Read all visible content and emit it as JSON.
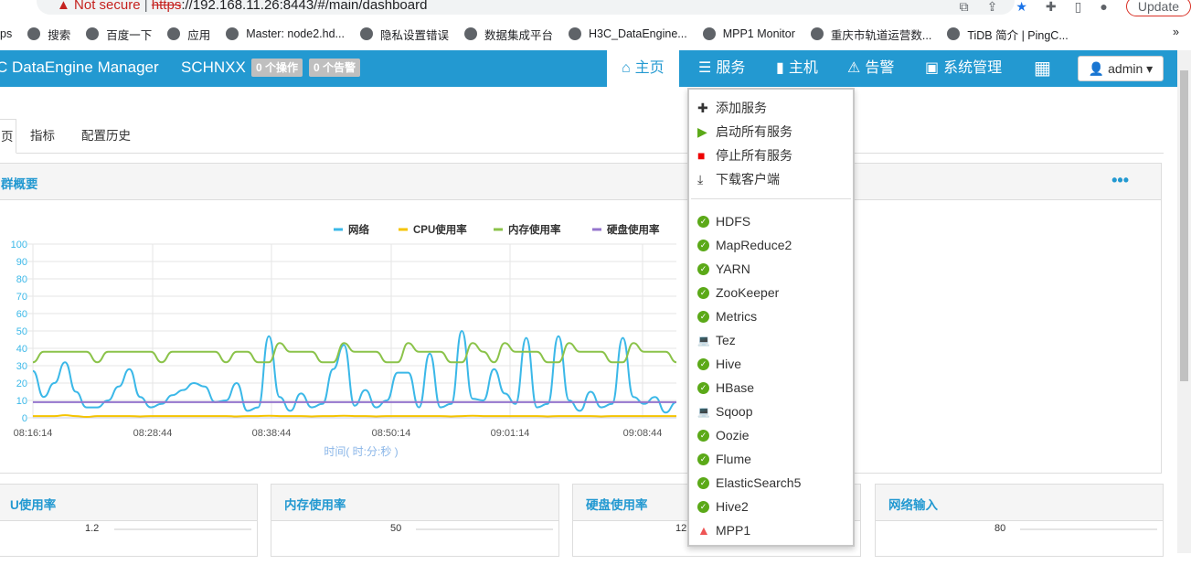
{
  "browser": {
    "warning": "Not secure",
    "url_scheme": "https",
    "url_rest": "://192.168.11.26:8443/#/main/dashboard",
    "update_label": "Update",
    "bookmarks": [
      "ps",
      "搜索",
      "百度一下",
      "应用",
      "Master: node2.hd...",
      "隐私设置错误",
      "数据集成平台",
      "H3C_DataEngine...",
      "MPP1 Monitor",
      "重庆市轨道运营数...",
      "TiDB 简介 | PingC..."
    ]
  },
  "topnav": {
    "brand": "C DataEngine Manager",
    "cluster": "SCHNXX",
    "ops_badge": "0 个操作",
    "alerts_badge": "0 个告警",
    "items": [
      {
        "label": "主页",
        "icon": "home-icon"
      },
      {
        "label": "服务",
        "icon": "database-icon"
      },
      {
        "label": "主机",
        "icon": "server-icon"
      },
      {
        "label": "告警",
        "icon": "warning-icon"
      },
      {
        "label": "系统管理",
        "icon": "monitor-icon"
      }
    ],
    "user": "admin"
  },
  "tabs": [
    "页",
    "指标",
    "配置历史"
  ],
  "panel": {
    "title": "群概要",
    "more": "•••"
  },
  "dropdown": {
    "actions": [
      {
        "label": "添加服务",
        "icon": "plus-icon"
      },
      {
        "label": "启动所有服务",
        "icon": "play-icon"
      },
      {
        "label": "停止所有服务",
        "icon": "stop-icon"
      },
      {
        "label": "下载客户端",
        "icon": "download-icon"
      }
    ],
    "services": [
      {
        "name": "HDFS",
        "status": "ok"
      },
      {
        "name": "MapReduce2",
        "status": "ok"
      },
      {
        "name": "YARN",
        "status": "ok"
      },
      {
        "name": "ZooKeeper",
        "status": "ok"
      },
      {
        "name": "Metrics",
        "status": "ok"
      },
      {
        "name": "Tez",
        "status": "client"
      },
      {
        "name": "Hive",
        "status": "ok"
      },
      {
        "name": "HBase",
        "status": "ok"
      },
      {
        "name": "Sqoop",
        "status": "client"
      },
      {
        "name": "Oozie",
        "status": "ok"
      },
      {
        "name": "Flume",
        "status": "ok"
      },
      {
        "name": "ElasticSearch5",
        "status": "ok"
      },
      {
        "name": "Hive2",
        "status": "ok"
      },
      {
        "name": "MPP1",
        "status": "alert"
      }
    ]
  },
  "small_panels": [
    {
      "title": "U使用率",
      "ymax": "1.2"
    },
    {
      "title": "内存使用率",
      "ymax": "50"
    },
    {
      "title": "硬盘使用率",
      "ymax": "12"
    },
    {
      "title": "网络输入",
      "ymax": "80"
    }
  ],
  "chart_data": {
    "type": "line",
    "xlabel": "时间( 时:分:秒 )",
    "ylim": [
      0,
      100
    ],
    "yticks": [
      0,
      10,
      20,
      30,
      40,
      50,
      60,
      70,
      80,
      90,
      100
    ],
    "xticks": [
      "08:16:14",
      "08:28:44",
      "08:38:44",
      "08:50:14",
      "09:01:14",
      "09:08:44"
    ],
    "grid": true,
    "legend": "top-right",
    "series": [
      {
        "name": "网络",
        "color": "#3bb8e8",
        "values": [
          27,
          12,
          20,
          32,
          15,
          6,
          6,
          10,
          18,
          28,
          12,
          6,
          8,
          13,
          16,
          20,
          18,
          9,
          10,
          20,
          4,
          6,
          47,
          12,
          4,
          14,
          6,
          8,
          28,
          42,
          7,
          16,
          6,
          10,
          26,
          26,
          6,
          37,
          6,
          8,
          50,
          11,
          10,
          28,
          14,
          8,
          46,
          6,
          8,
          47,
          10,
          4,
          15,
          6,
          8,
          46,
          12,
          8,
          12,
          3,
          9
        ]
      },
      {
        "name": "CPU使用率",
        "color": "#f5c400",
        "values": [
          1,
          1,
          1,
          1.5,
          1,
          0.5,
          1,
          1,
          1,
          1,
          0.8,
          1,
          1,
          1,
          1,
          1,
          1,
          1,
          1,
          0.8,
          1,
          1,
          1.2,
          1,
          1,
          1,
          0.8,
          1,
          1,
          1.2,
          1,
          1,
          0.8,
          1,
          1,
          1,
          1,
          1,
          1,
          0.8,
          1,
          1.2,
          1,
          1,
          1,
          1,
          1,
          1,
          0.8,
          1,
          1,
          1,
          1,
          0.8,
          1,
          1,
          1,
          1,
          1,
          1,
          1
        ]
      },
      {
        "name": "内存使用率",
        "color": "#8bc34a",
        "values": [
          32,
          38,
          38,
          38,
          38,
          38,
          32,
          38,
          38,
          38,
          38,
          38,
          32,
          38,
          38,
          38,
          38,
          38,
          32,
          38,
          38,
          32,
          32,
          43,
          38,
          38,
          38,
          32,
          32,
          43,
          38,
          38,
          38,
          32,
          32,
          43,
          38,
          38,
          38,
          32,
          32,
          43,
          38,
          32,
          43,
          38,
          38,
          38,
          32,
          32,
          43,
          38,
          38,
          38,
          32,
          32,
          43,
          38,
          38,
          38,
          32
        ]
      },
      {
        "name": "硬盘使用率",
        "color": "#9575cd",
        "values": [
          9,
          9,
          9,
          9,
          9,
          9,
          9,
          9,
          9,
          9,
          9,
          9,
          9,
          9,
          9,
          9,
          9,
          9,
          9,
          9,
          9,
          9,
          9,
          9,
          9,
          9,
          9,
          9,
          9,
          9,
          9,
          9,
          9,
          9,
          9,
          9,
          9,
          9,
          9,
          9,
          9,
          9,
          9,
          9,
          9,
          9,
          9,
          9,
          9,
          9,
          9,
          9,
          9,
          9,
          9,
          9,
          9,
          9,
          9,
          9,
          9
        ]
      }
    ]
  }
}
